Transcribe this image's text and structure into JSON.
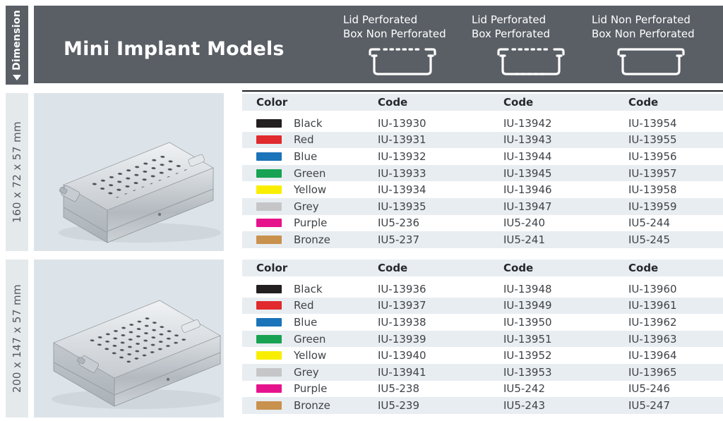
{
  "page": {
    "title": "Mini Implant Models",
    "dimension_tab_label": "Dimension"
  },
  "theme": {
    "header_bg": "#5a5f66",
    "stripe_bg": "#e8edf1",
    "photo_panel_bg": "#dde4e9",
    "dim_strip_bg": "#e4e9ec",
    "table_topline": "#1a1c1e"
  },
  "variants": [
    {
      "line1": "Lid Perforated",
      "line2": "Box Non Perforated",
      "icon": "lid-perforated-box-non-perforated-icon"
    },
    {
      "line1": "Lid Perforated",
      "line2": "Box Perforated",
      "icon": "lid-perforated-box-perforated-icon"
    },
    {
      "line1": "Lid Non Perforated",
      "line2": "Box Non Perforated",
      "icon": "lid-non-perforated-box-non-perforated-icon"
    }
  ],
  "sections": [
    {
      "dimension": "160 x 72 x 57 mm",
      "photo": "perforated-long-sterilization-box",
      "table": {
        "headers": [
          "Color",
          "Code",
          "Code",
          "Code"
        ],
        "rows": [
          {
            "color_name": "Black",
            "swatch": "#231f20",
            "codes": [
              "IU-13930",
              "IU-13942",
              "IU-13954"
            ]
          },
          {
            "color_name": "Red",
            "swatch": "#e02a2e",
            "codes": [
              "IU-13931",
              "IU-13943",
              "IU-13955"
            ]
          },
          {
            "color_name": "Blue",
            "swatch": "#1b73b9",
            "codes": [
              "IU-13932",
              "IU-13944",
              "IU-13956"
            ]
          },
          {
            "color_name": "Green",
            "swatch": "#17a353",
            "codes": [
              "IU-13933",
              "IU-13945",
              "IU-13957"
            ]
          },
          {
            "color_name": "Yellow",
            "swatch": "#f9ee00",
            "codes": [
              "IU-13934",
              "IU-13946",
              "IU-13958"
            ]
          },
          {
            "color_name": "Grey",
            "swatch": "#c6c6c8",
            "codes": [
              "IU-13935",
              "IU-13947",
              "IU-13959"
            ]
          },
          {
            "color_name": "Purple",
            "swatch": "#e6148c",
            "codes": [
              "IU5-236",
              "IU5-240",
              "IU5-244"
            ]
          },
          {
            "color_name": "Bronze",
            "swatch": "#c9914e",
            "codes": [
              "IU5-237",
              "IU5-241",
              "IU5-245"
            ]
          }
        ]
      }
    },
    {
      "dimension": "200 x 147 x 57 mm",
      "photo": "perforated-wide-sterilization-box",
      "table": {
        "headers": [
          "Color",
          "Code",
          "Code",
          "Code"
        ],
        "rows": [
          {
            "color_name": "Black",
            "swatch": "#231f20",
            "codes": [
              "IU-13936",
              "IU-13948",
              "IU-13960"
            ]
          },
          {
            "color_name": "Red",
            "swatch": "#e02a2e",
            "codes": [
              "IU-13937",
              "IU-13949",
              "IU-13961"
            ]
          },
          {
            "color_name": "Blue",
            "swatch": "#1b73b9",
            "codes": [
              "IU-13938",
              "IU-13950",
              "IU-13962"
            ]
          },
          {
            "color_name": "Green",
            "swatch": "#17a353",
            "codes": [
              "IU-13939",
              "IU-13951",
              "IU-13963"
            ]
          },
          {
            "color_name": "Yellow",
            "swatch": "#f9ee00",
            "codes": [
              "IU-13940",
              "IU-13952",
              "IU-13964"
            ]
          },
          {
            "color_name": "Grey",
            "swatch": "#c6c6c8",
            "codes": [
              "IU-13941",
              "IU-13953",
              "IU-13965"
            ]
          },
          {
            "color_name": "Purple",
            "swatch": "#e6148c",
            "codes": [
              "IU5-238",
              "IU5-242",
              "IU5-246"
            ]
          },
          {
            "color_name": "Bronze",
            "swatch": "#c9914e",
            "codes": [
              "IU5-239",
              "IU5-243",
              "IU5-247"
            ]
          }
        ]
      }
    }
  ]
}
